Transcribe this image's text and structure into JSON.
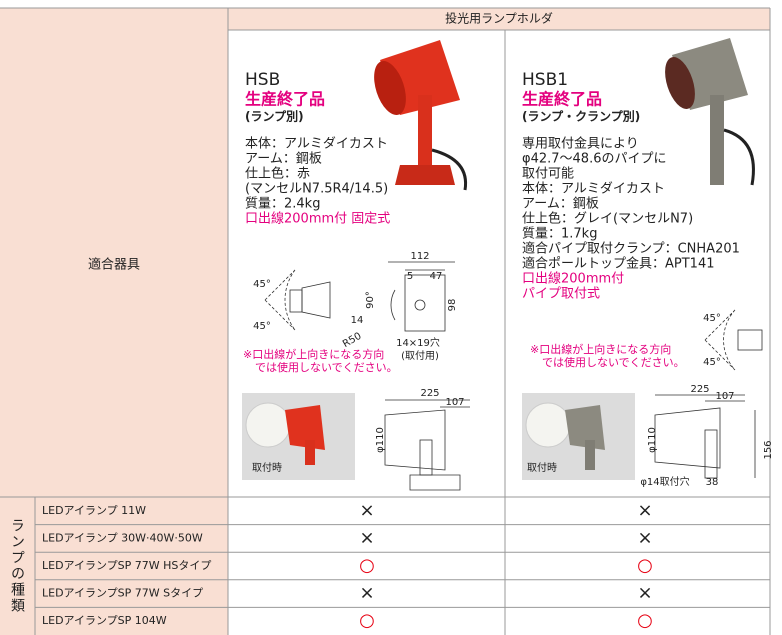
{
  "header": {
    "title": "投光用ランプホルダ"
  },
  "fixture_label": "適合器具",
  "products": [
    {
      "model": "HSB",
      "status": "生産終了品",
      "note": "(ランプ別)",
      "specs": [
        "本体：アルミダイカスト",
        "アーム：鋼板",
        "仕上色：赤",
        "(マンセルN7.5R4/14.5)",
        "質量：2.4kg"
      ],
      "wiring": [
        "口出線200mm付 固定式"
      ],
      "diagram_labels": [
        "112",
        "5",
        "47",
        "45°",
        "45°",
        "90°",
        "14",
        "R50",
        "98",
        "14×19穴",
        "(取付用)"
      ],
      "warning": [
        "※口出線が上向きになる方向",
        "では使用しないでください。"
      ],
      "photo_caption": "取付時",
      "side_labels": [
        "225",
        "107",
        "φ110"
      ]
    },
    {
      "model": "HSB1",
      "status": "生産終了品",
      "note": "(ランプ・クランプ別)",
      "specs": [
        "専用取付金具により",
        "φ42.7～48.6のパイプに",
        "取付可能",
        "本体：アルミダイカスト",
        "アーム：鋼板",
        "仕上色：グレイ(マンセルN7)",
        "質量：1.7kg",
        "適合パイプ取付クランプ：CNHA201",
        "適合ポールトップ金具：APT141"
      ],
      "wiring": [
        "口出線200mm付",
        "パイプ取付式"
      ],
      "diagram_labels": [
        "45°",
        "45°"
      ],
      "warning": [
        "※口出線が上向きになる方向",
        "では使用しないでください。"
      ],
      "photo_caption": "取付時",
      "side_labels": [
        "225",
        "107",
        "φ110",
        "156",
        "φ14取付穴",
        "38"
      ]
    }
  ],
  "lamp_table": {
    "group_label": "ランプの種類",
    "rows": [
      {
        "name": "LEDアイランプ 11W",
        "marks": [
          "×",
          "×"
        ]
      },
      {
        "name": "LEDアイランプ 30W·40W·50W",
        "marks": [
          "×",
          "×"
        ]
      },
      {
        "name": "LEDアイランプSP 77W HSタイプ",
        "marks": [
          "○",
          "○"
        ]
      },
      {
        "name": "LEDアイランプSP 77W Sタイプ",
        "marks": [
          "×",
          "×"
        ]
      },
      {
        "name": "LEDアイランプSP 104W",
        "marks": [
          "○",
          "○"
        ]
      }
    ]
  }
}
